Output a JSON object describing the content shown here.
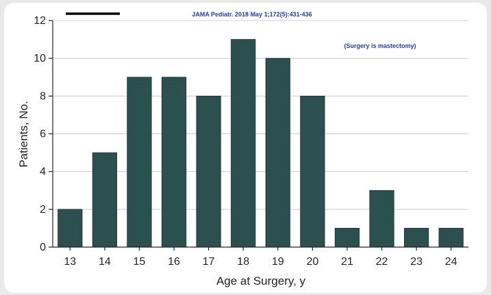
{
  "chart_data": {
    "type": "bar",
    "categories": [
      "13",
      "14",
      "15",
      "16",
      "17",
      "18",
      "19",
      "20",
      "21",
      "22",
      "23",
      "24"
    ],
    "values": [
      2,
      5,
      9,
      9,
      8,
      11,
      10,
      8,
      1,
      3,
      1,
      1
    ],
    "xlabel": "Age at Surgery, y",
    "ylabel": "Patients, No.",
    "ylim": [
      0,
      12
    ],
    "yticks": [
      0,
      2,
      4,
      6,
      8,
      10,
      12
    ],
    "grid": true,
    "bar_color": "#2c4f4f",
    "grid_color": "#cccccc"
  },
  "annotations": {
    "source": "JAMA Pediatr. 2018 May 1;172(5):431-436",
    "note": "(Surgery is mastectomy)",
    "color": "#1f3fb0"
  }
}
